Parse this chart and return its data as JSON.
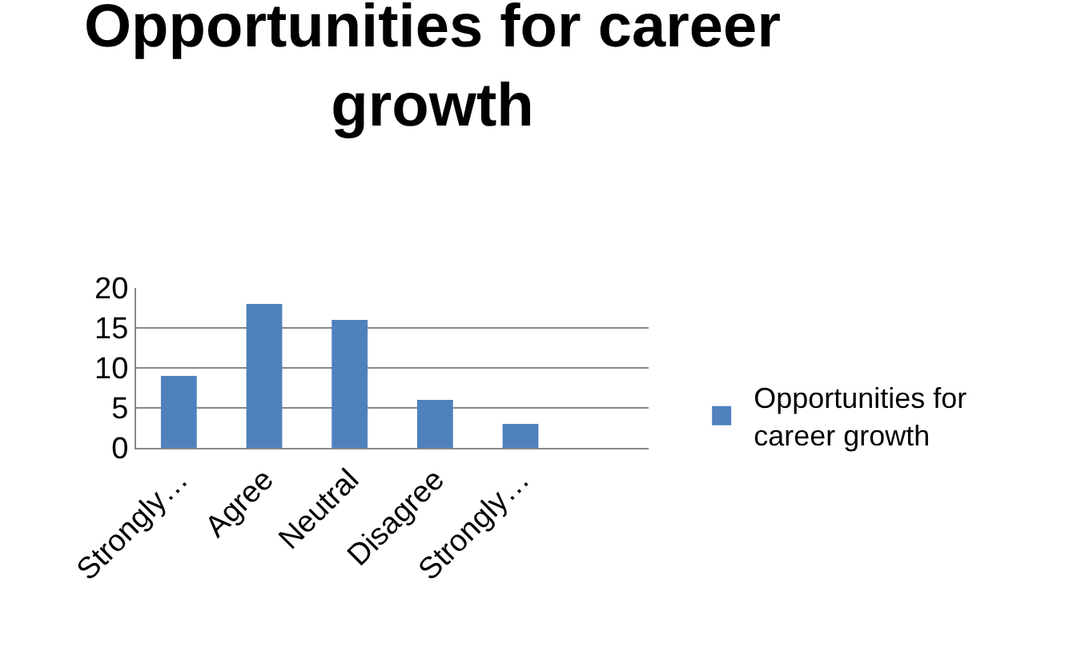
{
  "chart_data": {
    "type": "bar",
    "title": "Opportunities for career growth",
    "categories": [
      "Strongly…",
      "Agree",
      "Neutral",
      "Disagree",
      "Strongly…",
      null
    ],
    "series": [
      {
        "name": "Opportunities for career growth",
        "color": "#4f81bd",
        "values": [
          9,
          18,
          16,
          6,
          3,
          null
        ]
      }
    ],
    "ylim": [
      0,
      20
    ],
    "yticks": [
      0,
      5,
      10,
      15,
      20
    ],
    "grid": "y",
    "legend": "right"
  }
}
